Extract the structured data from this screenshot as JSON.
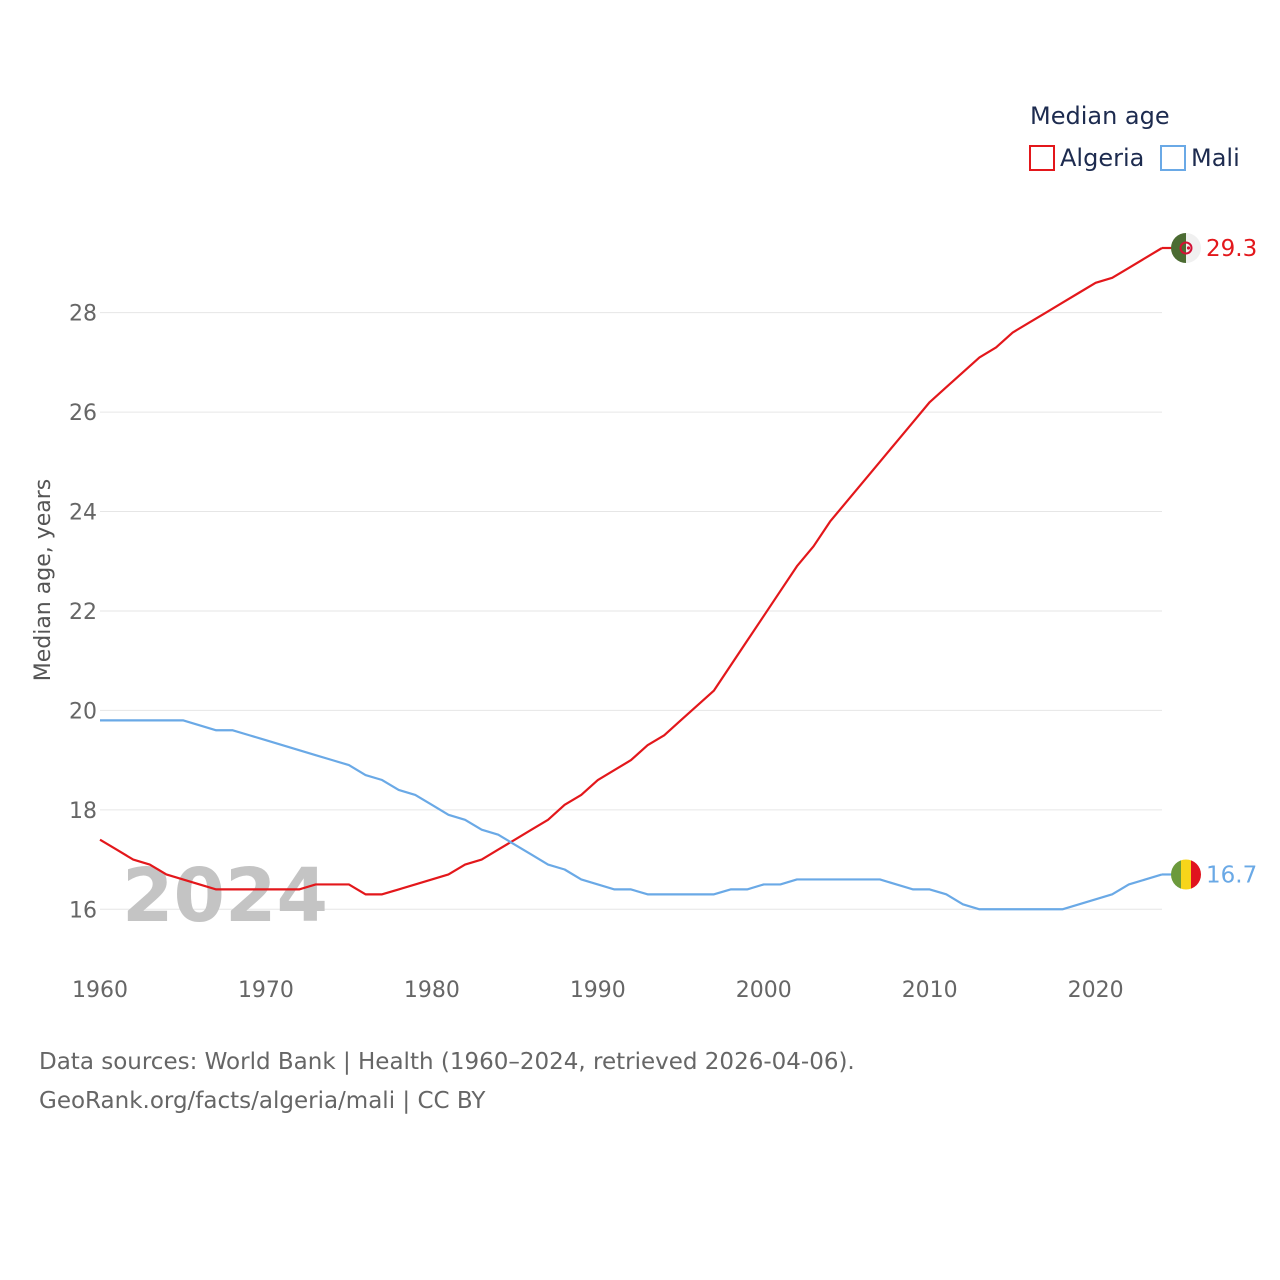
{
  "chart_data": {
    "type": "line",
    "title": "",
    "ylabel": "Median age, years",
    "xlabel": "",
    "watermark_year": "2024",
    "xlim": [
      1960,
      2024
    ],
    "ylim": [
      15,
      29.3
    ],
    "x_ticks": [
      1960,
      1970,
      1980,
      1990,
      2000,
      2010,
      2020
    ],
    "y_ticks": [
      16,
      18,
      20,
      22,
      24,
      26,
      28
    ],
    "grid": true,
    "legend": {
      "title": "Median age",
      "position": "top-right",
      "entries": [
        {
          "name": "Algeria",
          "color": "#e3171b"
        },
        {
          "name": "Mali",
          "color": "#6aa9e6"
        }
      ]
    },
    "x": [
      1960,
      1961,
      1962,
      1963,
      1964,
      1965,
      1966,
      1967,
      1968,
      1969,
      1970,
      1971,
      1972,
      1973,
      1974,
      1975,
      1976,
      1977,
      1978,
      1979,
      1980,
      1981,
      1982,
      1983,
      1984,
      1985,
      1986,
      1987,
      1988,
      1989,
      1990,
      1991,
      1992,
      1993,
      1994,
      1995,
      1996,
      1997,
      1998,
      1999,
      2000,
      2001,
      2002,
      2003,
      2004,
      2005,
      2006,
      2007,
      2008,
      2009,
      2010,
      2011,
      2012,
      2013,
      2014,
      2015,
      2016,
      2017,
      2018,
      2019,
      2020,
      2021,
      2022,
      2023,
      2024
    ],
    "series": [
      {
        "name": "Algeria",
        "color": "#e3171b",
        "end_label": "29.3",
        "flag": "algeria-flag",
        "values": [
          17.4,
          17.2,
          17.0,
          16.9,
          16.7,
          16.6,
          16.5,
          16.4,
          16.4,
          16.4,
          16.4,
          16.4,
          16.4,
          16.5,
          16.5,
          16.5,
          16.3,
          16.3,
          16.4,
          16.5,
          16.6,
          16.7,
          16.9,
          17.0,
          17.2,
          17.4,
          17.6,
          17.8,
          18.1,
          18.3,
          18.6,
          18.8,
          19.0,
          19.3,
          19.5,
          19.8,
          20.1,
          20.4,
          20.9,
          21.4,
          21.9,
          22.4,
          22.9,
          23.3,
          23.8,
          24.2,
          24.6,
          25.0,
          25.4,
          25.8,
          26.2,
          26.5,
          26.8,
          27.1,
          27.3,
          27.6,
          27.8,
          28.0,
          28.2,
          28.4,
          28.6,
          28.7,
          28.9,
          29.1,
          29.3
        ]
      },
      {
        "name": "Mali",
        "color": "#6aa9e6",
        "end_label": "16.7",
        "flag": "mali-flag",
        "values": [
          19.8,
          19.8,
          19.8,
          19.8,
          19.8,
          19.8,
          19.7,
          19.6,
          19.6,
          19.5,
          19.4,
          19.3,
          19.2,
          19.1,
          19.0,
          18.9,
          18.7,
          18.6,
          18.4,
          18.3,
          18.1,
          17.9,
          17.8,
          17.6,
          17.5,
          17.3,
          17.1,
          16.9,
          16.8,
          16.6,
          16.5,
          16.4,
          16.4,
          16.3,
          16.3,
          16.3,
          16.3,
          16.3,
          16.4,
          16.4,
          16.5,
          16.5,
          16.6,
          16.6,
          16.6,
          16.6,
          16.6,
          16.6,
          16.5,
          16.4,
          16.4,
          16.3,
          16.1,
          16.0,
          16.0,
          16.0,
          16.0,
          16.0,
          16.0,
          16.1,
          16.2,
          16.3,
          16.5,
          16.6,
          16.7
        ]
      }
    ]
  },
  "footer": {
    "source_line": "Data sources: World Bank | Health (1960–2024, retrieved 2026-04-06).",
    "attribution_line": "GeoRank.org/facts/algeria/mali | CC BY"
  }
}
